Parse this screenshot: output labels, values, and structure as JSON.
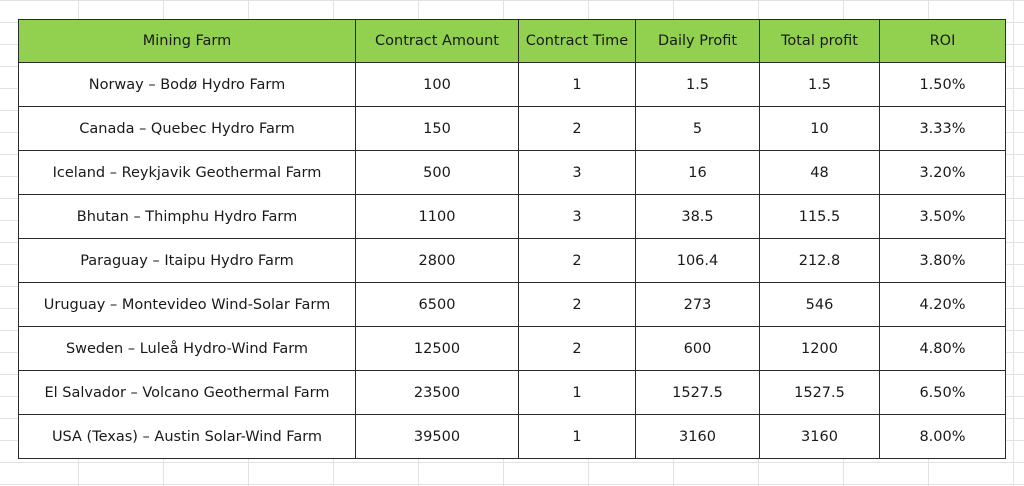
{
  "table": {
    "headers": [
      "Mining Farm",
      "Contract Amount",
      "Contract Time",
      "Daily Profit",
      "Total profit",
      "ROI"
    ],
    "rows": [
      [
        "Norway – Bodø Hydro Farm",
        "100",
        "1",
        "1.5",
        "1.5",
        "1.50%"
      ],
      [
        "Canada – Quebec Hydro Farm",
        "150",
        "2",
        "5",
        "10",
        "3.33%"
      ],
      [
        "Iceland – Reykjavik Geothermal Farm",
        "500",
        "3",
        "16",
        "48",
        "3.20%"
      ],
      [
        "Bhutan – Thimphu Hydro Farm",
        "1100",
        "3",
        "38.5",
        "115.5",
        "3.50%"
      ],
      [
        "Paraguay – Itaipu Hydro Farm",
        "2800",
        "2",
        "106.4",
        "212.8",
        "3.80%"
      ],
      [
        "Uruguay – Montevideo Wind-Solar Farm",
        "6500",
        "2",
        "273",
        "546",
        "4.20%"
      ],
      [
        "Sweden – Luleå Hydro-Wind Farm",
        "12500",
        "2",
        "600",
        "1200",
        "4.80%"
      ],
      [
        "El Salvador – Volcano Geothermal Farm",
        "23500",
        "1",
        "1527.5",
        "1527.5",
        "6.50%"
      ],
      [
        "USA (Texas) – Austin Solar-Wind Farm",
        "39500",
        "1",
        "3160",
        "3160",
        "8.00%"
      ]
    ]
  },
  "colors": {
    "header_fill": "#92d050",
    "border": "#2b2b2b",
    "gridline": "#e2e2e2"
  }
}
